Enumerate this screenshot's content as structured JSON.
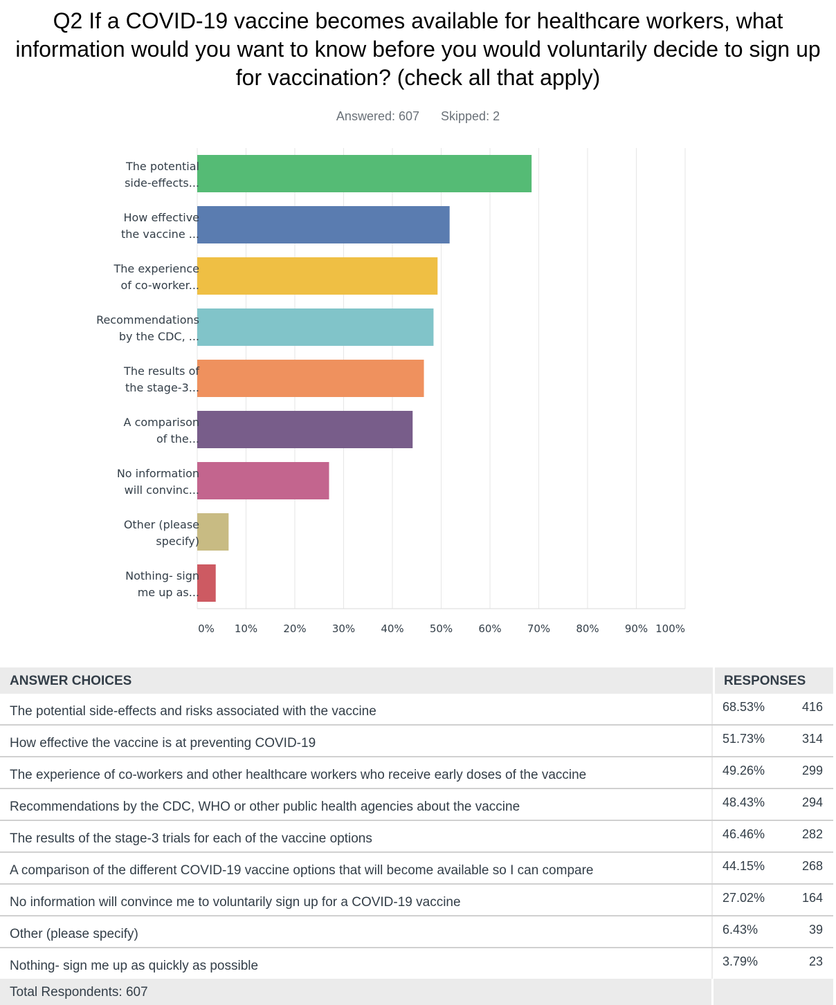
{
  "question": {
    "title": "Q2 If a COVID-19 vaccine becomes available for healthcare workers, what information would you want to know before you would voluntarily decide to sign up for vaccination? (check all that apply)",
    "answered": "Answered: 607",
    "skipped": "Skipped: 2"
  },
  "chart_data": {
    "type": "bar",
    "orientation": "horizontal",
    "categories": [
      [
        "The potential",
        "side-effects..."
      ],
      [
        "How effective",
        "the vaccine ..."
      ],
      [
        "The experience",
        "of co-worker..."
      ],
      [
        "Recommendations",
        "by the CDC, ..."
      ],
      [
        "The results of",
        "the stage-3..."
      ],
      [
        "A comparison",
        "of the..."
      ],
      [
        "No information",
        "will convinc..."
      ],
      [
        "Other (please",
        "specify)"
      ],
      [
        "Nothing- sign",
        "me up as..."
      ]
    ],
    "values": [
      68.53,
      51.73,
      49.26,
      48.43,
      46.46,
      44.15,
      27.02,
      6.43,
      3.79
    ],
    "colors": [
      "#55bb75",
      "#5a7cb0",
      "#efbf44",
      "#81c4c9",
      "#ef915e",
      "#785d8a",
      "#c3658e",
      "#c8bb83",
      "#cd5a62"
    ],
    "xlim": [
      0,
      100
    ],
    "xticks": [
      "0%",
      "10%",
      "20%",
      "30%",
      "40%",
      "50%",
      "60%",
      "70%",
      "80%",
      "90%",
      "100%"
    ],
    "grid": true
  },
  "table": {
    "header_answer": "ANSWER CHOICES",
    "header_responses": "RESPONSES",
    "rows": [
      {
        "label": "The potential side-effects and risks associated with the vaccine",
        "pct": "68.53%",
        "count": "416"
      },
      {
        "label": "How effective the vaccine is at preventing COVID-19",
        "pct": "51.73%",
        "count": "314"
      },
      {
        "label": "The experience of co-workers and other healthcare workers who receive early doses of the vaccine",
        "pct": "49.26%",
        "count": "299"
      },
      {
        "label": "Recommendations by the CDC, WHO or other public health agencies about the vaccine",
        "pct": "48.43%",
        "count": "294"
      },
      {
        "label": "The results of the stage-3 trials for each of the vaccine options",
        "pct": "46.46%",
        "count": "282"
      },
      {
        "label": "A comparison of the different COVID-19 vaccine options that will become available so I can compare",
        "pct": "44.15%",
        "count": "268"
      },
      {
        "label": "No information will convince me to voluntarily sign up for a COVID-19 vaccine",
        "pct": "27.02%",
        "count": "164"
      },
      {
        "label": "Other (please specify)",
        "pct": "6.43%",
        "count": "39"
      },
      {
        "label": "Nothing- sign me up as quickly as possible",
        "pct": "3.79%",
        "count": "23"
      }
    ],
    "footer": "Total Respondents: 607"
  }
}
